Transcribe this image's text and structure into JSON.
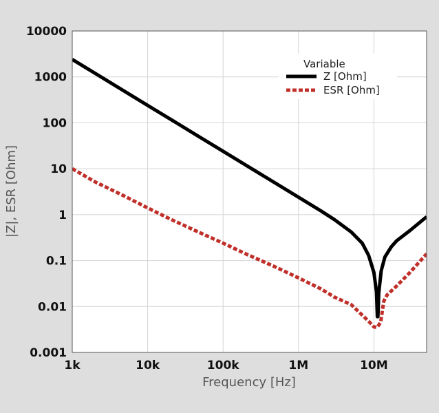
{
  "chart_data": {
    "type": "line",
    "title": "",
    "xlabel": "Frequency [Hz]",
    "ylabel": "|Z|, ESR [Ohm]",
    "xscale": "log",
    "yscale": "log",
    "xlim": [
      1000,
      50000000
    ],
    "ylim": [
      0.001,
      10000
    ],
    "grid": true,
    "x_ticks": [
      {
        "value": 1000,
        "label": "1k"
      },
      {
        "value": 10000,
        "label": "10k"
      },
      {
        "value": 100000,
        "label": "100k"
      },
      {
        "value": 1000000,
        "label": "1M"
      },
      {
        "value": 10000000,
        "label": "10M"
      }
    ],
    "y_ticks": [
      {
        "value": 0.001,
        "label": "0.001"
      },
      {
        "value": 0.01,
        "label": "0.01"
      },
      {
        "value": 0.1,
        "label": "0.1"
      },
      {
        "value": 1,
        "label": "1"
      },
      {
        "value": 10,
        "label": "10"
      },
      {
        "value": 100,
        "label": "100"
      },
      {
        "value": 1000,
        "label": "1000"
      },
      {
        "value": 10000,
        "label": "10000"
      }
    ],
    "legend": {
      "title": "Variable",
      "position": "top-right"
    },
    "series": [
      {
        "name": "Z [Ohm]",
        "color": "#000000",
        "style": "solid",
        "x": [
          1000,
          2000,
          5000,
          10000,
          20000,
          50000,
          100000,
          200000,
          500000,
          1000000,
          2000000,
          3000000,
          5000000,
          7000000,
          8500000,
          10000000,
          10800000,
          11100000,
          11300000,
          11600000,
          12500000,
          14000000,
          17000000,
          20000000,
          30000000,
          50000000
        ],
        "y": [
          2400,
          1200,
          480,
          240,
          120,
          48,
          24,
          12,
          4.8,
          2.4,
          1.2,
          0.78,
          0.42,
          0.24,
          0.13,
          0.055,
          0.021,
          0.006,
          0.006,
          0.02,
          0.06,
          0.12,
          0.2,
          0.27,
          0.45,
          0.9
        ]
      },
      {
        "name": "ESR [Ohm]",
        "color": "#c0302a",
        "style": "dashed",
        "x": [
          1000,
          2000,
          5000,
          10000,
          20000,
          50000,
          100000,
          200000,
          500000,
          1000000,
          2000000,
          3000000,
          5000000,
          7000000,
          8500000,
          10000000,
          11000000,
          12300000,
          13500000,
          15000000,
          20000000,
          30000000,
          50000000
        ],
        "y": [
          10,
          5.2,
          2.5,
          1.4,
          0.8,
          0.4,
          0.24,
          0.14,
          0.072,
          0.042,
          0.024,
          0.016,
          0.011,
          0.0065,
          0.0048,
          0.0036,
          0.0035,
          0.0045,
          0.013,
          0.018,
          0.028,
          0.055,
          0.14
        ]
      }
    ]
  }
}
